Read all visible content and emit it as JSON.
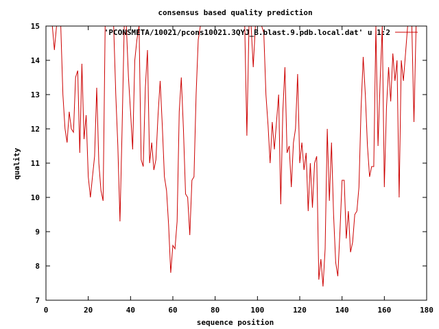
{
  "chart_data": {
    "type": "line",
    "title": "consensus based quality prediction",
    "xlabel": "sequence position",
    "ylabel": "quality",
    "xlim": [
      0,
      180
    ],
    "ylim": [
      7,
      15
    ],
    "xticks": [
      0,
      20,
      40,
      60,
      80,
      100,
      120,
      140,
      160,
      180
    ],
    "yticks": [
      7,
      8,
      9,
      10,
      11,
      12,
      13,
      14,
      15
    ],
    "grid": false,
    "legend_position": "top-right",
    "series": [
      {
        "name": "'PCONSMETA/10021/pcons10021.3QYJ_B.blast.9.pdb.local.dat' u 1:2",
        "color": "#cc0000",
        "x": [
          1,
          2,
          3,
          4,
          5,
          6,
          7,
          8,
          9,
          10,
          11,
          12,
          13,
          14,
          15,
          16,
          17,
          18,
          19,
          20,
          21,
          22,
          23,
          24,
          25,
          26,
          27,
          28,
          29,
          30,
          31,
          32,
          33,
          34,
          35,
          36,
          37,
          38,
          39,
          40,
          41,
          42,
          43,
          44,
          45,
          46,
          47,
          48,
          49,
          50,
          51,
          52,
          53,
          54,
          55,
          56,
          57,
          58,
          59,
          60,
          61,
          62,
          63,
          64,
          65,
          66,
          67,
          68,
          69,
          70,
          71,
          72,
          73,
          74,
          75,
          76,
          77,
          78,
          79,
          80,
          81,
          82,
          83,
          84,
          85,
          86,
          87,
          88,
          89,
          90,
          91,
          92,
          93,
          94,
          95,
          96,
          97,
          98,
          99,
          100,
          101,
          102,
          103,
          104,
          105,
          106,
          107,
          108,
          109,
          110,
          111,
          112,
          113,
          114,
          115,
          116,
          117,
          118,
          119,
          120,
          121,
          122,
          123,
          124,
          125,
          126,
          127,
          128,
          129,
          130,
          131,
          132,
          133,
          134,
          135,
          136,
          137,
          138,
          139,
          140,
          141,
          142,
          143,
          144,
          145,
          146,
          147,
          148,
          149,
          150,
          151,
          152,
          153,
          154,
          155,
          156,
          157,
          158,
          159,
          160,
          161,
          162,
          163,
          164,
          165,
          166,
          167,
          168,
          169,
          170,
          171,
          172,
          173,
          174,
          175,
          176
        ],
        "y": [
          15.0,
          15.0,
          15.0,
          14.3,
          15.0,
          15.0,
          15.0,
          13.0,
          12.0,
          11.6,
          12.5,
          12.0,
          11.9,
          13.5,
          13.7,
          11.3,
          13.9,
          11.7,
          12.4,
          10.6,
          10.0,
          10.6,
          11.2,
          13.2,
          11.0,
          10.2,
          9.9,
          15.0,
          15.0,
          15.0,
          15.0,
          15.0,
          13.0,
          11.5,
          9.3,
          12.0,
          15.0,
          15.0,
          13.5,
          12.5,
          11.4,
          14.0,
          14.6,
          15.0,
          11.1,
          10.9,
          13.2,
          14.3,
          11.0,
          11.6,
          10.8,
          11.1,
          12.4,
          13.4,
          12.1,
          10.6,
          10.2,
          9.2,
          7.8,
          8.6,
          8.5,
          9.3,
          12.5,
          13.5,
          12.0,
          10.1,
          10.0,
          8.9,
          10.5,
          10.6,
          13.0,
          14.6,
          15.0,
          15.0,
          15.0,
          15.0,
          15.0,
          15.0,
          15.0,
          15.0,
          15.0,
          15.0,
          15.0,
          15.0,
          15.0,
          15.0,
          15.0,
          15.0,
          15.0,
          15.0,
          15.0,
          15.0,
          15.0,
          15.0,
          11.8,
          15.0,
          15.0,
          13.8,
          15.0,
          15.0,
          15.0,
          15.0,
          14.8,
          13.0,
          12.1,
          11.0,
          12.2,
          11.4,
          12.2,
          13.0,
          9.8,
          12.5,
          13.8,
          11.3,
          11.5,
          10.3,
          11.6,
          12.0,
          13.6,
          11.0,
          11.6,
          10.8,
          11.3,
          9.6,
          11.0,
          9.7,
          11.0,
          11.2,
          7.6,
          8.2,
          7.4,
          8.5,
          12.0,
          9.9,
          11.6,
          9.5,
          8.1,
          7.7,
          9.0,
          10.5,
          10.5,
          8.8,
          9.6,
          8.4,
          8.7,
          9.5,
          9.6,
          10.3,
          12.6,
          14.1,
          13.0,
          11.5,
          10.6,
          10.9,
          10.9,
          15.0,
          11.5,
          13.4,
          15.0,
          10.3,
          12.6,
          13.8,
          12.8,
          14.2,
          13.4,
          14.0,
          10.0,
          14.0,
          13.4,
          14.2,
          15.0,
          15.0,
          15.0,
          12.2,
          15.0,
          15.0
        ]
      }
    ]
  }
}
